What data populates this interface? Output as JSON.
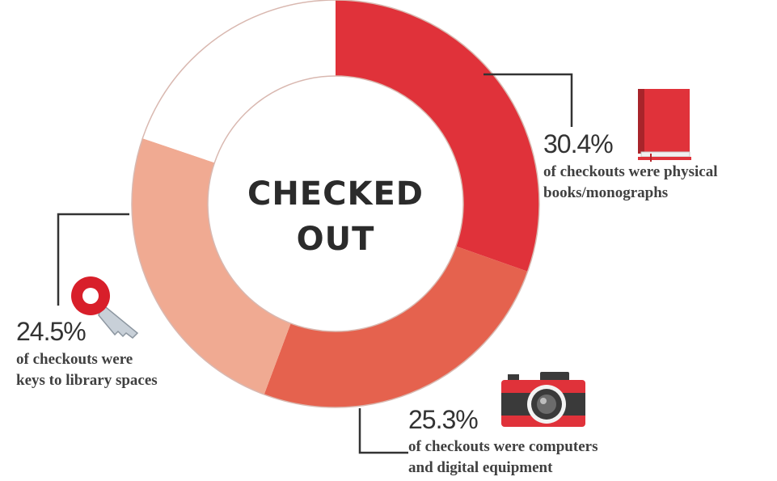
{
  "chart_data": {
    "type": "pie",
    "variant": "donut",
    "center_label": [
      "CHECKED",
      "OUT"
    ],
    "slices": [
      {
        "value": 30.4,
        "pct_label": "30.4%",
        "desc_lines": [
          "of checkouts were physical",
          "books/monographs"
        ],
        "color": "#e0323a",
        "icon": "book-icon"
      },
      {
        "value": 25.3,
        "pct_label": "25.3%",
        "desc_lines": [
          "of checkouts were computers",
          "and digital equipment"
        ],
        "color": "#e5624e",
        "icon": "camera-icon"
      },
      {
        "value": 24.5,
        "pct_label": "24.5%",
        "desc_lines": [
          "of checkouts were",
          "keys to library spaces"
        ],
        "color": "#f0aa92",
        "icon": "key-icon"
      },
      {
        "value": 19.8,
        "pct_label": "",
        "desc_lines": [],
        "color": "#ffffff"
      }
    ]
  },
  "colors": {
    "ring_outline": "#d9b8b0",
    "leader_line": "#333333"
  }
}
